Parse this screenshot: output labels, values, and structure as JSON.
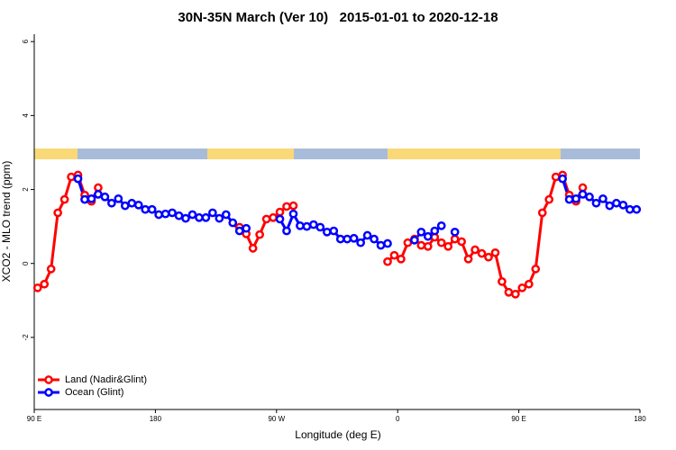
{
  "chart_data": {
    "type": "line",
    "title": "30N-35N March (Ver 10)   2015-01-01 to 2020-12-18",
    "xlabel": "Longitude (deg E)",
    "ylabel": "XCO2 - MLO trend (ppm)",
    "xlim": [
      90,
      540
    ],
    "xticks": [
      {
        "value": 90,
        "label": "90 E"
      },
      180,
      {
        "value": 270,
        "label": "90 W"
      },
      {
        "value": 360,
        "label": "0"
      },
      {
        "value": 450,
        "label": "90 E"
      },
      {
        "value": 540,
        "label": "180"
      }
    ],
    "ylim": [
      -3.95,
      6.2
    ],
    "yticks": [
      -2,
      0,
      2,
      4,
      6
    ],
    "legend": "bottom-left",
    "x": [
      92.5,
      97.5,
      102.5,
      107.5,
      112.5,
      117.5,
      122.5,
      127.5,
      132.5,
      137.5,
      142.5,
      147.5,
      152.5,
      157.5,
      162.5,
      167.5,
      172.5,
      177.5,
      182.5,
      187.5,
      192.5,
      197.5,
      202.5,
      207.5,
      212.5,
      217.5,
      222.5,
      227.5,
      232.5,
      237.5,
      242.5,
      247.5,
      252.5,
      257.5,
      262.5,
      267.5,
      272.5,
      277.5,
      282.5,
      287.5,
      292.5,
      297.5,
      302.5,
      307.5,
      312.5,
      317.5,
      322.5,
      327.5,
      332.5,
      337.5,
      342.5,
      347.5,
      352.5,
      357.5,
      362.5,
      367.5,
      372.5,
      377.5,
      382.5,
      387.5,
      392.5,
      397.5,
      402.5,
      407.5,
      412.5,
      417.5,
      422.5,
      427.5,
      432.5,
      437.5,
      442.5,
      447.5,
      452.5,
      457.5,
      462.5,
      467.5,
      472.5,
      477.5,
      482.5,
      487.5,
      492.5,
      497.5,
      502.5,
      507.5,
      512.5,
      517.5,
      522.5,
      527.5,
      532.5,
      537.5
    ],
    "series": [
      {
        "name": "Land (Nadir&Glint)",
        "color": "#ff0000",
        "values": [
          -0.66,
          -0.56,
          -0.15,
          1.37,
          1.73,
          2.34,
          2.39,
          1.85,
          1.68,
          2.05,
          null,
          null,
          null,
          null,
          null,
          null,
          null,
          null,
          null,
          null,
          null,
          null,
          null,
          null,
          null,
          null,
          null,
          null,
          null,
          null,
          0.98,
          0.8,
          0.41,
          0.78,
          1.2,
          1.24,
          1.39,
          1.54,
          1.56,
          null,
          null,
          null,
          null,
          null,
          null,
          null,
          null,
          null,
          null,
          null,
          null,
          null,
          0.05,
          0.22,
          0.12,
          0.56,
          0.66,
          0.49,
          0.46,
          0.71,
          0.56,
          0.46,
          0.66,
          0.59,
          0.12,
          0.37,
          0.27,
          0.17,
          0.29,
          -0.49,
          -0.78,
          -0.83,
          -0.66,
          -0.56,
          -0.15,
          1.37,
          1.73,
          2.34,
          2.39,
          1.85,
          1.68,
          2.05,
          null,
          null,
          null,
          null,
          null,
          null,
          null,
          null
        ]
      },
      {
        "name": "Ocean (Glint)",
        "color": "#0000ff",
        "values": [
          null,
          null,
          null,
          null,
          null,
          null,
          2.29,
          1.73,
          1.75,
          1.87,
          1.8,
          1.63,
          1.75,
          1.56,
          1.63,
          1.58,
          1.46,
          1.46,
          1.32,
          1.34,
          1.37,
          1.29,
          1.22,
          1.32,
          1.24,
          1.24,
          1.37,
          1.22,
          1.32,
          1.1,
          0.88,
          0.95,
          null,
          null,
          null,
          null,
          1.2,
          0.88,
          1.34,
          1.02,
          1.0,
          1.05,
          0.98,
          0.85,
          0.88,
          0.66,
          0.66,
          0.68,
          0.56,
          0.76,
          0.66,
          0.49,
          0.54,
          null,
          null,
          null,
          0.63,
          0.85,
          0.73,
          0.88,
          1.02,
          null,
          0.85,
          null,
          null,
          null,
          null,
          null,
          null,
          null,
          null,
          null,
          null,
          null,
          null,
          null,
          null,
          null,
          2.29,
          1.73,
          1.75,
          1.87,
          1.8,
          1.63,
          1.75,
          1.56,
          1.63,
          1.58,
          1.46,
          1.46
        ]
      }
    ]
  }
}
